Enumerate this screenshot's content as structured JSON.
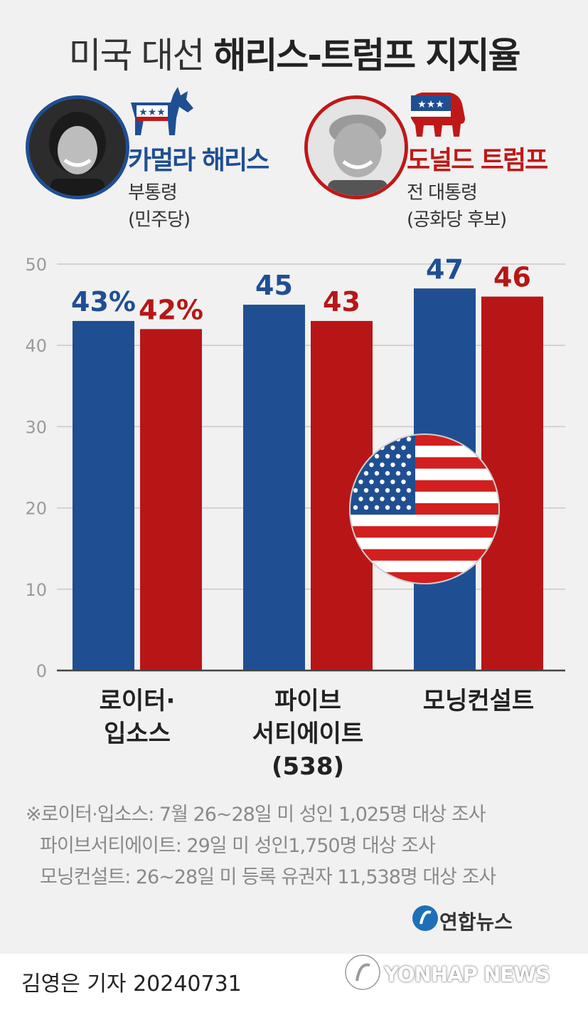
{
  "title": {
    "light": "미국 대선 ",
    "bold": "해리스-트럼프 지지율"
  },
  "candidates": {
    "harris": {
      "name": "카멀라 해리스",
      "role1": "부통령",
      "role2": "(민주당)",
      "color": "#1f4f92"
    },
    "trump": {
      "name": "도널드 트럼프",
      "role1": "전 대통령",
      "role2": "(공화당 후보)",
      "color": "#c01818"
    }
  },
  "chart_data": {
    "type": "bar",
    "categories": [
      [
        "로이터·",
        "입소스"
      ],
      [
        "파이브",
        "서티에이트",
        "(538)"
      ],
      [
        "모닝컨설트"
      ]
    ],
    "series": [
      {
        "name": "카멀라 해리스",
        "values": [
          43,
          45,
          47
        ],
        "labels": [
          "43%",
          "45",
          "47"
        ],
        "color": "#1f4f92"
      },
      {
        "name": "도널드 트럼프",
        "values": [
          42,
          43,
          46
        ],
        "labels": [
          "42%",
          "43",
          "46"
        ],
        "color": "#b81616"
      }
    ],
    "yticks": [
      "0",
      "10",
      "20",
      "30",
      "40",
      "50"
    ],
    "ylim": [
      0,
      50
    ],
    "grid": true
  },
  "notes": [
    "※로이터·입소스: 7월 26~28일 미 성인 1,025명 대상 조사",
    "파이브서티에이트: 29일 미 성인1,750명 대상 조사",
    "모닝컨설트: 26~28일 미 등록 유권자 11,538명 대상 조사"
  ],
  "footer": {
    "reporter": "김영은 기자  20240731",
    "logo": "연합뉴스",
    "watermark": "YONHAP NEWS"
  }
}
